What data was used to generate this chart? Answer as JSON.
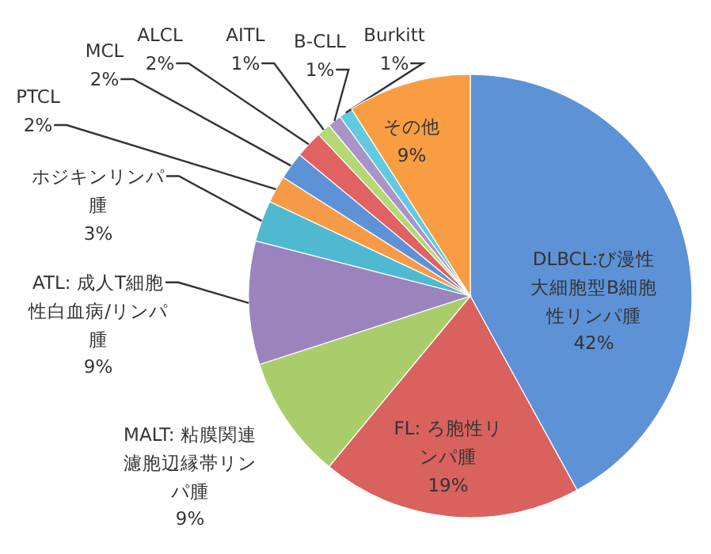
{
  "chart_data": {
    "type": "pie",
    "categories": [
      "DLBCL:び漫性大細胞型B細胞性リンパ腫",
      "FL: ろ胞性リンパ腫",
      "MALT: 粘膜関連濾胞辺縁帯リンパ腫",
      "ATL: 成人T細胞性白血病/リンパ腫",
      "ホジキンリンパ腫",
      "PTCL",
      "MCL",
      "ALCL",
      "AITL",
      "B-CLL",
      "Burkitt",
      "その他"
    ],
    "values": [
      42,
      19,
      9,
      9,
      3,
      2,
      2,
      2,
      1,
      1,
      1,
      9
    ],
    "value_labels": [
      "42%",
      "19%",
      "9%",
      "9%",
      "3%",
      "2%",
      "2%",
      "2%",
      "1%",
      "1%",
      "1%",
      "9%"
    ],
    "colors": [
      "#5e92d6",
      "#d9625e",
      "#aacd6c",
      "#9b83bd",
      "#4fb9d2",
      "#f59b48",
      "#5e92d6",
      "#e06262",
      "#b4d874",
      "#a993c9",
      "#62c9e1",
      "#f89d42"
    ]
  }
}
